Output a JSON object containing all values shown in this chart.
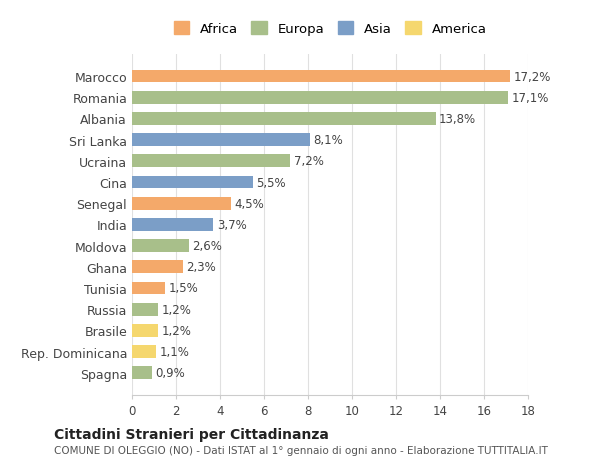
{
  "categories": [
    "Marocco",
    "Romania",
    "Albania",
    "Sri Lanka",
    "Ucraina",
    "Cina",
    "Senegal",
    "India",
    "Moldova",
    "Ghana",
    "Tunisia",
    "Russia",
    "Brasile",
    "Rep. Dominicana",
    "Spagna"
  ],
  "values": [
    17.2,
    17.1,
    13.8,
    8.1,
    7.2,
    5.5,
    4.5,
    3.7,
    2.6,
    2.3,
    1.5,
    1.2,
    1.2,
    1.1,
    0.9
  ],
  "labels": [
    "17,2%",
    "17,1%",
    "13,8%",
    "8,1%",
    "7,2%",
    "5,5%",
    "4,5%",
    "3,7%",
    "2,6%",
    "2,3%",
    "1,5%",
    "1,2%",
    "1,2%",
    "1,1%",
    "0,9%"
  ],
  "continents": [
    "Africa",
    "Europa",
    "Europa",
    "Asia",
    "Europa",
    "Asia",
    "Africa",
    "Asia",
    "Europa",
    "Africa",
    "Africa",
    "Europa",
    "America",
    "America",
    "Europa"
  ],
  "colors": {
    "Africa": "#F4A96A",
    "Europa": "#A8BF8A",
    "Asia": "#7B9EC7",
    "America": "#F5D76E"
  },
  "legend_order": [
    "Africa",
    "Europa",
    "Asia",
    "America"
  ],
  "title": "Cittadini Stranieri per Cittadinanza",
  "subtitle": "COMUNE DI OLEGGIO (NO) - Dati ISTAT al 1° gennaio di ogni anno - Elaborazione TUTTITALIA.IT",
  "xlim": [
    0,
    18
  ],
  "xticks": [
    0,
    2,
    4,
    6,
    8,
    10,
    12,
    14,
    16,
    18
  ],
  "background_color": "#ffffff",
  "grid_color": "#e0e0e0"
}
